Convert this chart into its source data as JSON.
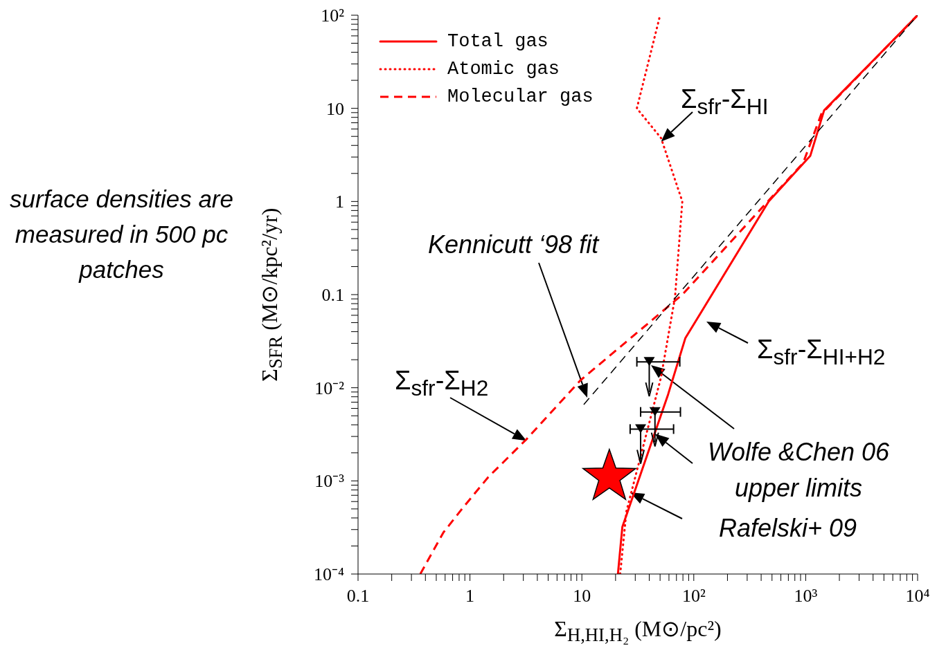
{
  "chart_data": {
    "type": "line",
    "xlabel": "Σ$_{H,HI,H₂}$ (M⊙/pc²)",
    "ylabel": "Σ$_{SFR}$ (M⊙/kpc²/yr)",
    "log": "xy",
    "legend": "top left",
    "xlim": [
      0.1,
      10000
    ],
    "ylim": [
      0.0001,
      100
    ],
    "xticks": [
      {
        "value": 0.1,
        "label": "0.1"
      },
      {
        "value": 0.2,
        "label": null
      },
      {
        "value": 0.3,
        "label": null
      },
      {
        "value": 0.4,
        "label": null
      },
      {
        "value": 0.5,
        "label": null
      },
      {
        "value": 0.6,
        "label": null
      },
      {
        "value": 0.7,
        "label": null
      },
      {
        "value": 0.8,
        "label": null
      },
      {
        "value": 0.9,
        "label": null
      },
      1,
      {
        "value": 2,
        "label": null
      },
      {
        "value": 3,
        "label": null
      },
      {
        "value": 4,
        "label": null
      },
      {
        "value": 5,
        "label": null
      },
      {
        "value": 6,
        "label": null
      },
      {
        "value": 7,
        "label": null
      },
      {
        "value": 8,
        "label": null
      },
      {
        "value": 9,
        "label": null
      },
      10,
      {
        "value": 20,
        "label": null
      },
      {
        "value": 30,
        "label": null
      },
      {
        "value": 40,
        "label": null
      },
      {
        "value": 50,
        "label": null
      },
      {
        "value": 60,
        "label": null
      },
      {
        "value": 70,
        "label": null
      },
      {
        "value": 80,
        "label": null
      },
      {
        "value": 90,
        "label": null
      },
      {
        "value": 100,
        "label": "10²"
      },
      {
        "value": 200,
        "label": null
      },
      {
        "value": 300,
        "label": null
      },
      {
        "value": 400,
        "label": null
      },
      {
        "value": 500,
        "label": null
      },
      {
        "value": 600,
        "label": null
      },
      {
        "value": 700,
        "label": null
      },
      {
        "value": 800,
        "label": null
      },
      {
        "value": 900,
        "label": null
      },
      {
        "value": 1000,
        "label": "10³"
      },
      {
        "value": 2000,
        "label": null
      },
      {
        "value": 3000,
        "label": null
      },
      {
        "value": 4000,
        "label": null
      },
      {
        "value": 5000,
        "label": null
      },
      {
        "value": 6000,
        "label": null
      },
      {
        "value": 7000,
        "label": null
      },
      {
        "value": 8000,
        "label": null
      },
      {
        "value": 9000,
        "label": null
      },
      {
        "value": 10000,
        "label": "10⁴"
      }
    ],
    "yticks": [
      {
        "value": 0.0001,
        "label": "10⁻⁴"
      },
      {
        "value": 0.0002,
        "label": null
      },
      {
        "value": 0.0003,
        "label": null
      },
      {
        "value": 0.0004,
        "label": null
      },
      {
        "value": 0.0005,
        "label": null
      },
      {
        "value": 0.0006,
        "label": null
      },
      {
        "value": 0.0007,
        "label": null
      },
      {
        "value": 0.0008,
        "label": null
      },
      {
        "value": 0.0009,
        "label": null
      },
      {
        "value": 0.001,
        "label": "10⁻³"
      },
      {
        "value": 0.002,
        "label": null
      },
      {
        "value": 0.003,
        "label": null
      },
      {
        "value": 0.004,
        "label": null
      },
      {
        "value": 0.005,
        "label": null
      },
      {
        "value": 0.006,
        "label": null
      },
      {
        "value": 0.007,
        "label": null
      },
      {
        "value": 0.008,
        "label": null
      },
      {
        "value": 0.009,
        "label": null
      },
      {
        "value": 0.01,
        "label": "10⁻²"
      },
      {
        "value": 0.02,
        "label": null
      },
      {
        "value": 0.03,
        "label": null
      },
      {
        "value": 0.04,
        "label": null
      },
      {
        "value": 0.05,
        "label": null
      },
      {
        "value": 0.06,
        "label": null
      },
      {
        "value": 0.07,
        "label": null
      },
      {
        "value": 0.08,
        "label": null
      },
      {
        "value": 0.09,
        "label": null
      },
      0.1,
      {
        "value": 0.2,
        "label": null
      },
      {
        "value": 0.3,
        "label": null
      },
      {
        "value": 0.4,
        "label": null
      },
      {
        "value": 0.5,
        "label": null
      },
      {
        "value": 0.6,
        "label": null
      },
      {
        "value": 0.7,
        "label": null
      },
      {
        "value": 0.8,
        "label": null
      },
      {
        "value": 0.9,
        "label": null
      },
      1,
      {
        "value": 2,
        "label": null
      },
      {
        "value": 3,
        "label": null
      },
      {
        "value": 4,
        "label": null
      },
      {
        "value": 5,
        "label": null
      },
      {
        "value": 6,
        "label": null
      },
      {
        "value": 7,
        "label": null
      },
      {
        "value": 8,
        "label": null
      },
      {
        "value": 9,
        "label": null
      },
      10,
      {
        "value": 20,
        "label": null
      },
      {
        "value": 30,
        "label": null
      },
      {
        "value": 40,
        "label": null
      },
      {
        "value": 50,
        "label": null
      },
      {
        "value": 60,
        "label": null
      },
      {
        "value": 70,
        "label": null
      },
      {
        "value": 80,
        "label": null
      },
      {
        "value": 90,
        "label": null
      },
      {
        "value": 100,
        "label": "10²"
      }
    ],
    "series": [
      {
        "name": "Total gas",
        "type": "line",
        "color": "#ff0000",
        "line_style": "solid",
        "marker": "none",
        "x": [
          21,
          23,
          59,
          84,
          467,
          1100,
          1460,
          10000
        ],
        "values": [
          0.0001,
          0.00032,
          0.0085,
          0.034,
          1,
          3.1,
          9.5,
          100
        ]
      },
      {
        "name": "Atomic gas",
        "type": "line",
        "color": "#ff0000",
        "line_style": "dotted",
        "marker": "none",
        "x": [
          22,
          25,
          51,
          68,
          79,
          51,
          31,
          50
        ],
        "values": [
          0.0001,
          0.00047,
          0.013,
          0.094,
          1,
          4.8,
          10,
          100
        ]
      },
      {
        "name": "Molecular gas",
        "type": "line",
        "color": "#ff0000",
        "line_style": "dashed",
        "marker": "none",
        "x": [
          0.36,
          0.58,
          0.86,
          1.46,
          3.2,
          9.7,
          79,
          950,
          1380,
          10000
        ],
        "values": [
          0.0001,
          0.00028,
          0.00051,
          0.0011,
          0.0028,
          0.012,
          0.1,
          2.6,
          8.7,
          100
        ]
      },
      {
        "type": "line",
        "color": "#000000",
        "line_style": "dashed",
        "marker": "none",
        "x": [
          10.4,
          10000
        ],
        "values": [
          0.0066,
          100
        ]
      },
      {
        "type": "scatter",
        "color": "#000000",
        "marker": "triangle",
        "x": [
          40,
          45,
          33.5
        ],
        "values": [
          0.019,
          0.0055,
          0.0036
        ],
        "xerrors": [
          [
            31,
            75
          ],
          [
            33.5,
            76
          ],
          [
            27,
            66
          ]
        ]
      },
      {
        "type": "scatter",
        "color": "#ff0000",
        "marker": "star",
        "x": [
          17.6
        ],
        "values": [
          0.0011
        ]
      }
    ],
    "annotations": [
      {
        "text": "Σ$_{sfr}$-Σ$_{HI}$",
        "x": 51,
        "y": 4.4
      },
      "Kennicutt ‘98 fit",
      {
        "text": "Σ$_{sfr}$-Σ$_{H2}$",
        "x": 3.2,
        "y": 0.0027
      },
      "Σ$_{sfr}$-Σ$_{HI+H2}$",
      {
        "text": "Wolfe &Chen 06 upper limits",
        "x": 45,
        "y": 0.0032
      },
      "Rafelski+ 09",
      "surface densities are measured in 500 pc patches"
    ]
  }
}
